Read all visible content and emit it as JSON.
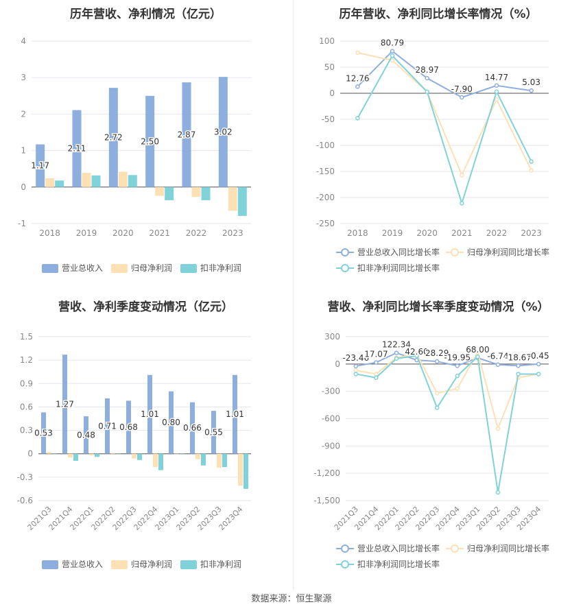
{
  "source": "数据来源：恒生聚源",
  "chart_data": [
    {
      "type": "bar",
      "title": "历年营收、净利情况（亿元）",
      "categories": [
        "2018",
        "2019",
        "2020",
        "2021",
        "2022",
        "2023"
      ],
      "ylim": [
        -1,
        4
      ],
      "yticks": [
        -1,
        0,
        1,
        2,
        3,
        4
      ],
      "series": [
        {
          "name": "营业总收入",
          "color": "#8eaedd",
          "values": [
            1.17,
            2.11,
            2.72,
            2.5,
            2.87,
            3.02
          ],
          "labels": [
            "1.17",
            "2.11",
            "2.72",
            "2.50",
            "2.87",
            "3.02"
          ]
        },
        {
          "name": "归母净利润",
          "color": "#fde0b3",
          "values": [
            0.24,
            0.39,
            0.42,
            -0.24,
            -0.27,
            -0.65
          ]
        },
        {
          "name": "扣非净利润",
          "color": "#7fd3d8",
          "values": [
            0.18,
            0.32,
            0.33,
            -0.36,
            -0.36,
            -0.79
          ]
        }
      ],
      "legend": "bottom"
    },
    {
      "type": "line",
      "title": "历年营收、净利同比增长率情况（%）",
      "categories": [
        "2018",
        "2019",
        "2020",
        "2021",
        "2022",
        "2023"
      ],
      "ylim": [
        -250,
        100
      ],
      "yticks": [
        -250,
        -200,
        -150,
        -100,
        -50,
        0,
        50,
        100
      ],
      "series": [
        {
          "name": "营业总收入同比增长率",
          "color": "#8eaedd",
          "values": [
            12.76,
            80.79,
            28.97,
            -7.9,
            14.77,
            5.03
          ],
          "labels": [
            "12.76",
            "80.79",
            "28.97",
            "-7.90",
            "14.77",
            "5.03"
          ]
        },
        {
          "name": "归母净利润同比增长率",
          "color": "#fde0b3",
          "values": [
            78,
            63,
            3,
            -157,
            -12,
            -148
          ]
        },
        {
          "name": "扣非净利润同比增长率",
          "color": "#7fd3d8",
          "values": [
            -48,
            72,
            3,
            -211,
            3,
            -131
          ]
        }
      ],
      "legend": "bottom"
    },
    {
      "type": "bar",
      "title": "营收、净利季度变动情况（亿元）",
      "categories": [
        "2021Q3",
        "2021Q4",
        "2022Q1",
        "2022Q2",
        "2022Q3",
        "2022Q4",
        "2023Q1",
        "2023Q2",
        "2023Q3",
        "2023Q4"
      ],
      "ylim": [
        -0.6,
        1.5
      ],
      "yticks": [
        -0.6,
        -0.3,
        0,
        0.3,
        0.6,
        0.9,
        1.2,
        1.5
      ],
      "ytick_labels": [
        "-0.6",
        "-0.3",
        "0",
        "0.3",
        "0.6",
        "0.9",
        "1.2",
        "1.5"
      ],
      "series": [
        {
          "name": "营业总收入",
          "color": "#8eaedd",
          "values": [
            0.53,
            1.27,
            0.48,
            0.71,
            0.68,
            1.01,
            0.8,
            0.66,
            0.55,
            1.01
          ],
          "labels": [
            "0.53",
            "1.27",
            "0.48",
            "0.71",
            "0.68",
            "1.01",
            "0.80",
            "0.66",
            "0.55",
            "1.01"
          ]
        },
        {
          "name": "归母净利润",
          "color": "#fde0b3",
          "values": [
            0.02,
            -0.05,
            -0.02,
            0.01,
            -0.06,
            -0.17,
            0.0,
            -0.07,
            -0.18,
            -0.41
          ]
        },
        {
          "name": "扣非净利润",
          "color": "#7fd3d8",
          "values": [
            0.0,
            -0.09,
            -0.04,
            0.0,
            -0.08,
            -0.21,
            0.0,
            -0.15,
            -0.17,
            -0.45
          ]
        }
      ],
      "legend": "bottom"
    },
    {
      "type": "line",
      "title": "营收、净利同比增长率季度变动情况（%）",
      "categories": [
        "2021Q3",
        "2021Q4",
        "2022Q1",
        "2022Q2",
        "2022Q3",
        "2022Q4",
        "2023Q1",
        "2023Q2",
        "2023Q3",
        "2023Q4"
      ],
      "ylim": [
        -1500,
        300
      ],
      "yticks": [
        -1500,
        -1200,
        -900,
        -600,
        -300,
        0,
        300
      ],
      "ytick_labels": [
        "-1,500",
        "-1,200",
        "-900",
        "-600",
        "-300",
        "0",
        "300"
      ],
      "series": [
        {
          "name": "营业总收入同比增长率",
          "color": "#8eaedd",
          "values": [
            -23.46,
            17.07,
            122.34,
            42.6,
            28.29,
            -19.95,
            68.0,
            -6.74,
            -18.67,
            -0.45
          ],
          "labels": [
            "-23.46",
            "17.07",
            "122.34",
            "42.60",
            "28.29",
            "-19.95",
            "68.00",
            "-6.74",
            "-18.67",
            "-0.45"
          ]
        },
        {
          "name": "归母净利润同比增长率",
          "color": "#fde0b3",
          "values": [
            -70,
            -110,
            70,
            110,
            -320,
            -270,
            130,
            -710,
            -150,
            -110
          ]
        },
        {
          "name": "扣非净利润同比增长率",
          "color": "#7fd3d8",
          "values": [
            -110,
            -150,
            60,
            90,
            -480,
            -130,
            80,
            -1410,
            -110,
            -110
          ]
        }
      ],
      "legend": "bottom"
    }
  ]
}
